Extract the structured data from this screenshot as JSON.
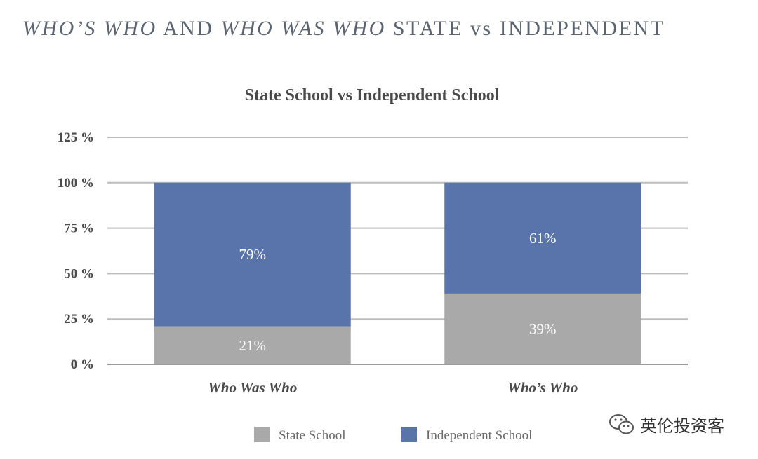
{
  "page_title": {
    "part1": "WHO’S WHO",
    "part2": " AND ",
    "part3": "WHO WAS WHO",
    "part4": " STATE vs INDEPENDENT"
  },
  "watermark": {
    "text": "英伦投资客",
    "icon": "wechat-icon"
  },
  "colors": {
    "state": "#a9a9a9",
    "independent": "#5874ab",
    "gridline": "#bdbdbd",
    "axis": "#9a9a9a"
  },
  "chart_data": {
    "type": "bar",
    "stacked": true,
    "title": "State School vs Independent School",
    "categories": [
      "Who Was Who",
      "Who’s Who"
    ],
    "series": [
      {
        "name": "State School",
        "values": [
          21,
          39
        ],
        "labels": [
          "21%",
          "39%"
        ]
      },
      {
        "name": "Independent School",
        "values": [
          79,
          61
        ],
        "labels": [
          "79%",
          "61%"
        ]
      }
    ],
    "yticks": [
      "0 %",
      "25 %",
      "50 %",
      "75 %",
      "100 %",
      "125 %"
    ],
    "ylim": [
      0,
      125
    ],
    "xlabel": "",
    "ylabel": "",
    "grid": true,
    "legend": "bottom-center"
  }
}
